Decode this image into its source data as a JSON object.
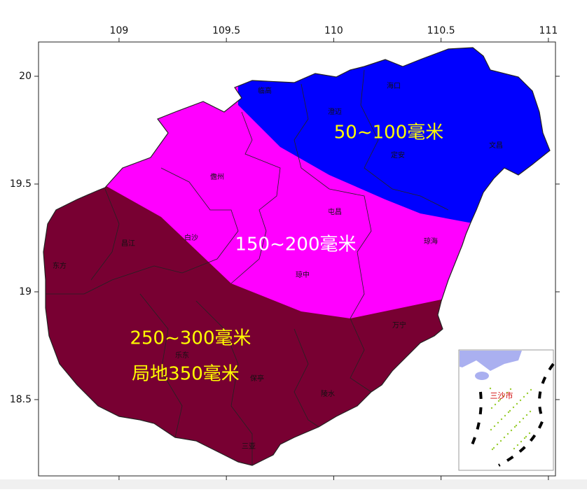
{
  "map_data": {
    "xlim": [
      108.625,
      111.033
    ],
    "ylim": [
      18.146,
      20.159
    ],
    "xticks": [
      109,
      109.5,
      110,
      110.5,
      111
    ],
    "yticks": [
      20,
      19.5,
      19,
      18.5
    ],
    "zones": [
      {
        "label": [
          "250~300毫米",
          "局地350毫米"
        ],
        "color": "#780032",
        "label_color": "#ffff00"
      },
      {
        "label": [
          "150~200毫米"
        ],
        "color": "#ff00ff",
        "label_color": "#ffffff"
      },
      {
        "label": [
          "50~100毫米"
        ],
        "color": "#0000ff",
        "label_color": "#ffff00"
      }
    ],
    "cities": [
      "临高",
      "海口",
      "澄迈",
      "定安",
      "文昌",
      "儋州",
      "屯昌",
      "白沙",
      "琼海",
      "昌江",
      "琼中",
      "东方",
      "万宁",
      "乐东",
      "保亭",
      "陵水",
      "三亚"
    ],
    "inset": {
      "label": "三沙市"
    }
  }
}
